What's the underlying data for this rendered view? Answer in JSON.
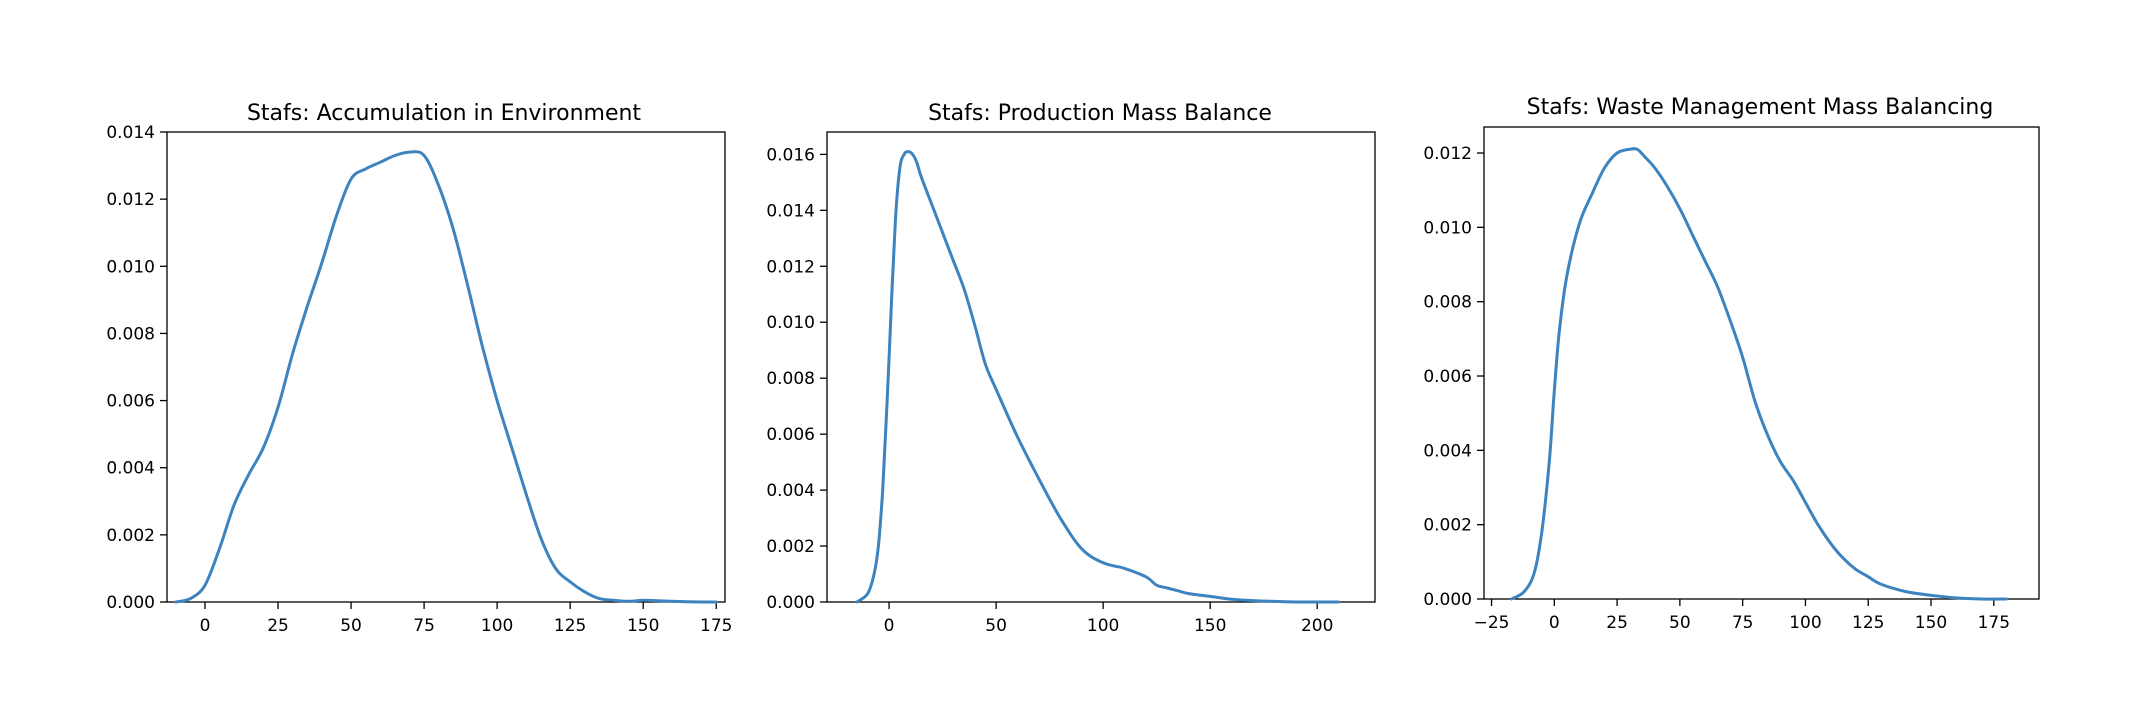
{
  "colors": {
    "line": "#3c83bf"
  },
  "chart_data": [
    {
      "type": "line",
      "title": "Stafs: Accumulation in Environment",
      "xlabel": "",
      "ylabel": "",
      "xlim": [
        -13,
        178
      ],
      "ylim": [
        0,
        0.014
      ],
      "xticks": [
        0,
        25,
        50,
        75,
        100,
        125,
        150,
        175
      ],
      "xtick_labels": [
        "0",
        "25",
        "50",
        "75",
        "100",
        "125",
        "150",
        "175"
      ],
      "yticks": [
        0,
        0.002,
        0.004,
        0.006,
        0.008,
        0.01,
        0.012,
        0.014
      ],
      "ytick_labels": [
        "0.000",
        "0.002",
        "0.004",
        "0.006",
        "0.008",
        "0.010",
        "0.012",
        "0.014"
      ],
      "grid": false,
      "series": [
        {
          "x": [
            -10,
            -5,
            0,
            5,
            10,
            15,
            20,
            25,
            30,
            35,
            40,
            45,
            50,
            55,
            60,
            65,
            70,
            75,
            80,
            85,
            90,
            95,
            100,
            105,
            110,
            115,
            120,
            125,
            130,
            135,
            140,
            145,
            150,
            155,
            160,
            165,
            170,
            175
          ],
          "y": [
            0.0,
            0.0001,
            0.0005,
            0.0016,
            0.0029,
            0.0038,
            0.0046,
            0.0058,
            0.0074,
            0.0088,
            0.0101,
            0.0115,
            0.0126,
            0.0129,
            0.0131,
            0.0133,
            0.0134,
            0.0133,
            0.0124,
            0.0111,
            0.0094,
            0.0076,
            0.006,
            0.0046,
            0.0032,
            0.0019,
            0.001,
            0.0006,
            0.0003,
            0.0001,
            5e-05,
            2e-05,
            5e-05,
            4e-05,
            2e-05,
            1e-05,
            0.0,
            0.0
          ]
        }
      ]
    },
    {
      "type": "line",
      "title": "Stafs: Production Mass Balance",
      "xlabel": "",
      "ylabel": "",
      "xlim": [
        -29,
        227
      ],
      "ylim": [
        0,
        0.0168
      ],
      "xticks": [
        0,
        50,
        100,
        150,
        200
      ],
      "xtick_labels": [
        "0",
        "50",
        "100",
        "150",
        "200"
      ],
      "yticks": [
        0,
        0.002,
        0.004,
        0.006,
        0.008,
        0.01,
        0.012,
        0.014,
        0.016
      ],
      "ytick_labels": [
        "0.000",
        "0.002",
        "0.004",
        "0.006",
        "0.008",
        "0.010",
        "0.012",
        "0.014",
        "0.016"
      ],
      "grid": false,
      "series": [
        {
          "x": [
            -15,
            -10,
            -7,
            -5,
            -3,
            -1,
            1,
            3,
            5,
            7,
            9,
            11,
            13,
            15,
            20,
            25,
            30,
            35,
            40,
            45,
            50,
            60,
            70,
            80,
            90,
            100,
            110,
            120,
            125,
            130,
            135,
            140,
            150,
            160,
            170,
            180,
            190,
            200,
            210
          ],
          "y": [
            0.0,
            0.0003,
            0.001,
            0.002,
            0.004,
            0.007,
            0.0105,
            0.0137,
            0.0155,
            0.016,
            0.0161,
            0.016,
            0.0157,
            0.0152,
            0.0142,
            0.0132,
            0.0122,
            0.0112,
            0.0099,
            0.0085,
            0.0076,
            0.0059,
            0.0044,
            0.003,
            0.0019,
            0.0014,
            0.0012,
            0.0009,
            0.0006,
            0.0005,
            0.0004,
            0.0003,
            0.0002,
            0.0001,
            5e-05,
            2e-05,
            0.0,
            0.0,
            0.0
          ]
        }
      ]
    },
    {
      "type": "line",
      "title": "Stafs: Waste Management Mass Balancing",
      "xlabel": "",
      "ylabel": "",
      "xlim": [
        -28,
        193
      ],
      "ylim": [
        0,
        0.0127
      ],
      "xticks": [
        -25,
        0,
        25,
        50,
        75,
        100,
        125,
        150,
        175
      ],
      "xtick_labels": [
        "−25",
        "0",
        "25",
        "50",
        "75",
        "100",
        "125",
        "150",
        "175"
      ],
      "yticks": [
        0,
        0.002,
        0.004,
        0.006,
        0.008,
        0.01,
        0.012
      ],
      "ytick_labels": [
        "0.000",
        "0.002",
        "0.004",
        "0.006",
        "0.008",
        "0.010",
        "0.012"
      ],
      "grid": false,
      "series": [
        {
          "x": [
            -17,
            -12,
            -8,
            -5,
            -2,
            0,
            2,
            5,
            10,
            15,
            20,
            25,
            30,
            33,
            36,
            40,
            45,
            50,
            55,
            60,
            65,
            70,
            75,
            80,
            85,
            90,
            95,
            100,
            105,
            110,
            115,
            120,
            125,
            130,
            140,
            150,
            160,
            170,
            180
          ],
          "y": [
            0.0,
            0.0002,
            0.0007,
            0.0018,
            0.0037,
            0.0056,
            0.0072,
            0.0087,
            0.0101,
            0.0109,
            0.0116,
            0.012,
            0.0121,
            0.0121,
            0.0119,
            0.0116,
            0.0111,
            0.0105,
            0.0098,
            0.0091,
            0.0084,
            0.0075,
            0.0065,
            0.0053,
            0.0044,
            0.0037,
            0.0032,
            0.0026,
            0.002,
            0.0015,
            0.0011,
            0.0008,
            0.0006,
            0.0004,
            0.0002,
            0.0001,
            3e-05,
            0.0,
            0.0
          ]
        }
      ]
    }
  ]
}
